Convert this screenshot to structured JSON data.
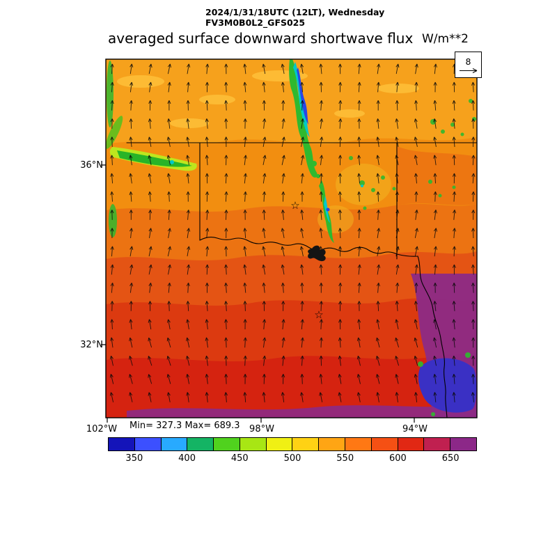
{
  "header": {
    "line1": "2024/1/31/18UTC (12LT), Wednesday",
    "line2": "FV3M0B0L2_GFS025",
    "title": "averaged surface downward shortwave flux",
    "units": "W/m**2"
  },
  "axes": {
    "lat": [
      "36°N",
      "32°N"
    ],
    "lon": [
      "102°W",
      "98°W",
      "94°W"
    ],
    "stats": "Min= 327.3 Max= 689.3"
  },
  "reference_vector": {
    "value": "8"
  },
  "markers": {
    "symbol": "☆"
  },
  "colorbar": {
    "range": [
      325,
      675
    ],
    "labels": [
      "350",
      "400",
      "450",
      "500",
      "550",
      "600",
      "650"
    ],
    "colors": [
      "#1414B9",
      "#3C50FF",
      "#28AAFF",
      "#14B464",
      "#50D21E",
      "#A8E614",
      "#F0F014",
      "#FFD214",
      "#FFA514",
      "#FF7814",
      "#F55014",
      "#E12814",
      "#C02050",
      "#8C2888"
    ]
  },
  "chart_data": {
    "type": "heatmap",
    "title": "averaged surface downward shortwave flux",
    "units": "W/m**2",
    "valid_time": "2024/1/31/18UTC (12LT), Wednesday",
    "model_run": "FV3M0B0L2_GFS025",
    "stats": {
      "min": 327.3,
      "max": 689.3
    },
    "colorbar_levels": [
      325,
      350,
      375,
      400,
      425,
      450,
      475,
      500,
      525,
      550,
      575,
      600,
      625,
      650,
      675
    ],
    "colorbar_colors": [
      "#1414B9",
      "#3C50FF",
      "#28AAFF",
      "#14B464",
      "#50D21E",
      "#A8E614",
      "#F0F014",
      "#FFD214",
      "#FFA514",
      "#FF7814",
      "#F55014",
      "#E12814",
      "#C02050",
      "#8C2888"
    ],
    "x_ticks": [
      "102°W",
      "98°W",
      "94°W"
    ],
    "y_ticks": [
      "36°N",
      "32°N"
    ],
    "wind": {
      "reference_vector": 8,
      "pattern": "vector arrows point roughly northward over the whole Texas/Oklahoma domain, tilting slightly NW in the south"
    },
    "field_regions": [
      {
        "region": "northern band near 37N (OK/TX panhandles)",
        "approx_value": 565
      },
      {
        "region": "north-central cloud streak (blue/cyan core)",
        "approx_value": 350
      },
      {
        "region": "west-edge green cloud streak near 36N",
        "approx_value": 470
      },
      {
        "region": "central Oklahoma",
        "approx_value": 590
      },
      {
        "region": "Red River / north Texas",
        "approx_value": 615
      },
      {
        "region": "central-south Texas band",
        "approx_value": 645
      },
      {
        "region": "southeast corner and bottom strip (purple)",
        "approx_value": 665
      },
      {
        "region": "blue patch near southeast corner",
        "approx_value": 360
      }
    ]
  }
}
